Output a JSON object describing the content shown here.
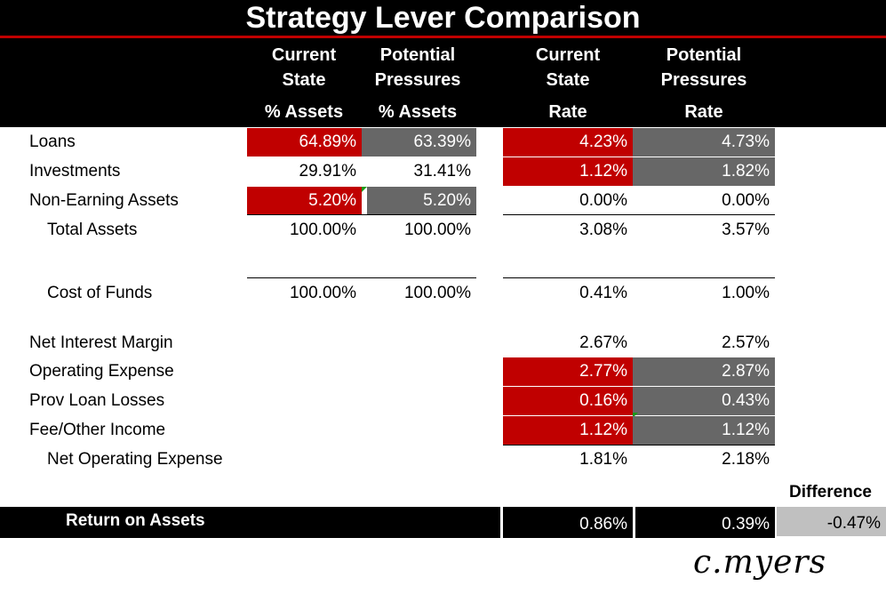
{
  "title": "Strategy Lever Comparison",
  "colors": {
    "red": "#c00000",
    "gray": "#676767",
    "black": "#000000",
    "light_gray": "#c0c0c0"
  },
  "columns": [
    {
      "line1": "Current",
      "line2": "State",
      "unit": "% Assets"
    },
    {
      "line1": "Potential",
      "line2": "Pressures",
      "unit": "% Assets"
    },
    {
      "line1": "Current",
      "line2": "State",
      "unit": "Rate"
    },
    {
      "line1": "Potential",
      "line2": "Pressures",
      "unit": "Rate"
    }
  ],
  "rows": {
    "loans": {
      "label": "Loans",
      "cur_assets": "64.89%",
      "pot_assets": "63.39%",
      "cur_rate": "4.23%",
      "pot_rate": "4.73%"
    },
    "investments": {
      "label": "Investments",
      "cur_assets": "29.91%",
      "pot_assets": "31.41%",
      "cur_rate": "1.12%",
      "pot_rate": "1.82%"
    },
    "non_earning": {
      "label": "Non-Earning Assets",
      "cur_assets": "5.20%",
      "pot_assets": "5.20%",
      "cur_rate": "0.00%",
      "pot_rate": "0.00%"
    },
    "total_assets": {
      "label": "Total Assets",
      "cur_assets": "100.00%",
      "pot_assets": "100.00%",
      "cur_rate": "3.08%",
      "pot_rate": "3.57%"
    },
    "cost_of_funds": {
      "label": "Cost of Funds",
      "cur_assets": "100.00%",
      "pot_assets": "100.00%",
      "cur_rate": "0.41%",
      "pot_rate": "1.00%"
    },
    "nim": {
      "label": "Net Interest Margin",
      "cur_rate": "2.67%",
      "pot_rate": "2.57%"
    },
    "opex": {
      "label": "Operating Expense",
      "cur_rate": "2.77%",
      "pot_rate": "2.87%"
    },
    "pll": {
      "label": "Prov Loan Losses",
      "cur_rate": "0.16%",
      "pot_rate": "0.43%"
    },
    "fee": {
      "label": "Fee/Other Income",
      "cur_rate": "1.12%",
      "pot_rate": "1.12%"
    },
    "net_opex": {
      "label": "Net Operating Expense",
      "cur_rate": "1.81%",
      "pot_rate": "2.18%"
    }
  },
  "roa": {
    "label": "Return on Assets",
    "cur": "0.86%",
    "pot": "0.39%",
    "difference_label": "Difference",
    "difference": "-0.47%"
  },
  "signature": "c.myers"
}
